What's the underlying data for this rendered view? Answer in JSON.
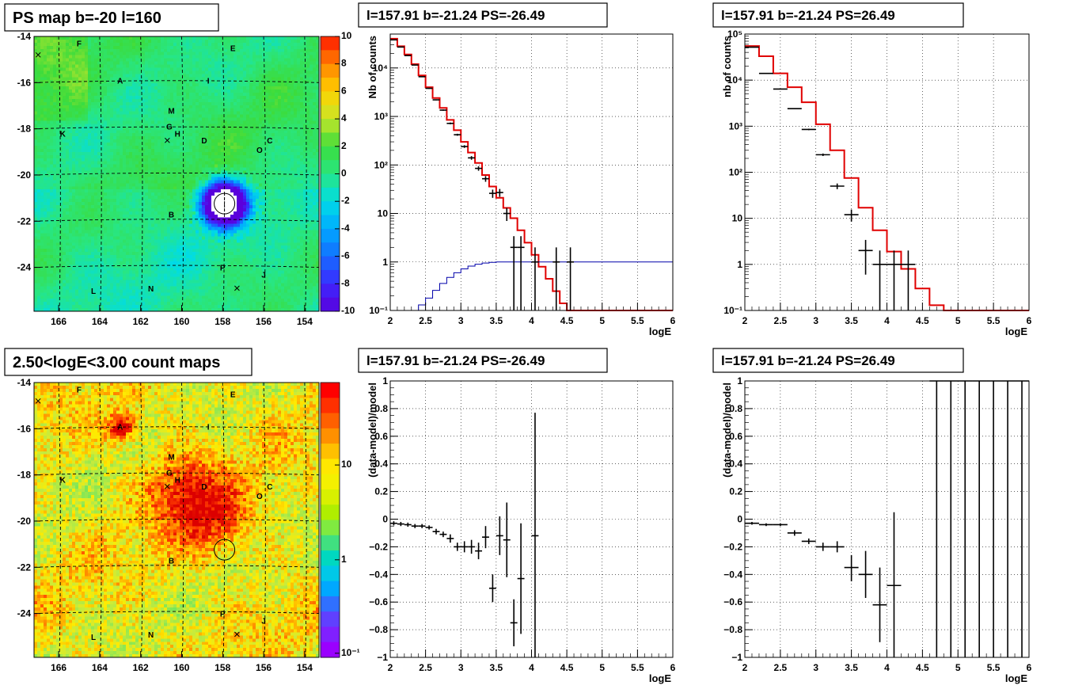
{
  "chart_data": [
    {
      "id": "ps-map",
      "type": "heatmap",
      "title": "PS map b=-20 l=160",
      "x_ticks": [
        166,
        164,
        162,
        160,
        158,
        156,
        154
      ],
      "y_ticks": [
        -14,
        -16,
        -18,
        -20,
        -22,
        -24
      ],
      "xlim": [
        167.2,
        153.3
      ],
      "ylim": [
        -25.9,
        -14.0
      ],
      "colorbar": {
        "min": -10,
        "max": 10,
        "ticks": [
          10,
          8,
          6,
          4,
          2,
          0,
          -2,
          -4,
          -6,
          -8,
          -10
        ]
      },
      "sources": [
        {
          "label": "F",
          "l": 165.0,
          "b": -14.3
        },
        {
          "label": "E",
          "l": 157.5,
          "b": -14.5
        },
        {
          "label": "A",
          "l": 163.0,
          "b": -15.9
        },
        {
          "label": "I",
          "l": 158.7,
          "b": -15.9
        },
        {
          "label": "M",
          "l": 160.5,
          "b": -17.2
        },
        {
          "label": "G",
          "l": 160.6,
          "b": -17.9
        },
        {
          "label": "H",
          "l": 160.2,
          "b": -18.2
        },
        {
          "label": "K",
          "l": 165.8,
          "b": -18.2
        },
        {
          "label": "D",
          "l": 158.9,
          "b": -18.5
        },
        {
          "label": "C",
          "l": 155.7,
          "b": -18.5
        },
        {
          "label": "O",
          "l": 156.2,
          "b": -18.9
        },
        {
          "label": "B",
          "l": 160.5,
          "b": -21.7
        },
        {
          "label": "P",
          "l": 158.0,
          "b": -24.0
        },
        {
          "label": "J",
          "l": 156.0,
          "b": -24.3
        },
        {
          "label": "N",
          "l": 161.5,
          "b": -24.9
        },
        {
          "label": "L",
          "l": 164.3,
          "b": -25.0
        }
      ],
      "crosses": [
        {
          "l": 167.0,
          "b": -14.8
        },
        {
          "l": 160.7,
          "b": -18.5
        },
        {
          "l": 157.3,
          "b": -24.9
        }
      ],
      "target": {
        "l": 157.91,
        "b": -21.24
      }
    },
    {
      "id": "spectrum-neg",
      "type": "line",
      "title": "l=157.91 b=-21.24 PS=-26.49",
      "xlabel": "logE",
      "ylabel": "Nb of counts",
      "yscale": "log",
      "xlim": [
        2,
        6
      ],
      "ylim": [
        0.1,
        50000
      ],
      "x_ticks": [
        2,
        2.5,
        3,
        3.5,
        4,
        4.5,
        5,
        5.5,
        6
      ],
      "y_ticks": [
        {
          "v": 0.1,
          "label": "10⁻¹"
        },
        {
          "v": 1,
          "label": "1"
        },
        {
          "v": 10,
          "label": "10"
        },
        {
          "v": 100,
          "label": "10²"
        },
        {
          "v": 1000,
          "label": "10³"
        },
        {
          "v": 10000,
          "label": "10⁴"
        }
      ],
      "bin_edges": [
        2.0,
        2.1,
        2.2,
        2.3,
        2.4,
        2.5,
        2.6,
        2.7,
        2.8,
        2.9,
        3.0,
        3.1,
        3.2,
        3.3,
        3.4,
        3.5,
        3.6,
        3.7,
        3.8,
        3.9,
        4.0,
        4.1,
        4.2,
        4.3,
        4.4,
        4.5,
        4.6,
        4.7,
        4.8,
        4.9,
        5.0,
        5.1,
        5.2,
        5.3,
        5.4,
        5.5,
        5.6,
        5.7,
        5.8,
        5.9,
        6.0
      ],
      "series": [
        {
          "type": "step",
          "color": "#e00000",
          "values": [
            40000,
            28000,
            19000,
            12000,
            7000,
            4000,
            2400,
            1500,
            850,
            520,
            300,
            180,
            110,
            62,
            36,
            21,
            13,
            8,
            4.5,
            2.5,
            1.4,
            0.8,
            0.45,
            0.25,
            0.14,
            0.1,
            0.1,
            0.1,
            0.1,
            0.1,
            0.1,
            0.1,
            0.1,
            0.1,
            0.1,
            0.1,
            0.1,
            0.1,
            0.1,
            0.1
          ]
        },
        {
          "type": "step",
          "color": "#0000aa",
          "values": [
            0.1,
            0.1,
            0.1,
            0.1,
            0.13,
            0.18,
            0.26,
            0.36,
            0.48,
            0.6,
            0.72,
            0.82,
            0.9,
            0.95,
            0.98,
            1.0,
            1.0,
            1.0,
            1.0,
            1.0,
            1.0,
            1.0,
            1.0,
            1.0,
            1.0,
            1.0,
            1.0,
            1.0,
            1.0,
            1.0,
            1.0,
            1.0,
            1.0,
            1.0,
            1.0,
            1.0,
            1.0,
            1.0,
            1.0,
            1.0
          ]
        },
        {
          "type": "errorbar",
          "color": "#000000",
          "points": [
            {
              "x": 2.05,
              "y": 38000,
              "ylo": 37800,
              "yhi": 38200
            },
            {
              "x": 2.15,
              "y": 27000,
              "ylo": 26800,
              "yhi": 27200
            },
            {
              "x": 2.25,
              "y": 18000,
              "ylo": 17800,
              "yhi": 18200
            },
            {
              "x": 2.35,
              "y": 11500,
              "ylo": 11300,
              "yhi": 11700
            },
            {
              "x": 2.45,
              "y": 6600,
              "ylo": 6500,
              "yhi": 6700
            },
            {
              "x": 2.55,
              "y": 3800,
              "ylo": 3700,
              "yhi": 3900
            },
            {
              "x": 2.65,
              "y": 2200,
              "ylo": 2150,
              "yhi": 2250
            },
            {
              "x": 2.75,
              "y": 1350,
              "ylo": 1310,
              "yhi": 1390
            },
            {
              "x": 2.85,
              "y": 720,
              "ylo": 690,
              "yhi": 750
            },
            {
              "x": 2.95,
              "y": 420,
              "ylo": 400,
              "yhi": 440
            },
            {
              "x": 3.05,
              "y": 240,
              "ylo": 225,
              "yhi": 255
            },
            {
              "x": 3.15,
              "y": 140,
              "ylo": 128,
              "yhi": 152
            },
            {
              "x": 3.25,
              "y": 85,
              "ylo": 76,
              "yhi": 94
            },
            {
              "x": 3.35,
              "y": 52,
              "ylo": 45,
              "yhi": 59
            },
            {
              "x": 3.45,
              "y": 26,
              "ylo": 21,
              "yhi": 31
            },
            {
              "x": 3.55,
              "y": 27,
              "ylo": 22,
              "yhi": 32
            },
            {
              "x": 3.65,
              "y": 10,
              "ylo": 7,
              "yhi": 13
            },
            {
              "x": 3.75,
              "y": 2,
              "ylo": 0.1,
              "yhi": 3.4
            },
            {
              "x": 3.85,
              "y": 2,
              "ylo": 0.1,
              "yhi": 3.4
            },
            {
              "x": 4.05,
              "y": 1,
              "ylo": 0.1,
              "yhi": 2
            },
            {
              "x": 4.35,
              "y": 1,
              "ylo": 0.1,
              "yhi": 2
            },
            {
              "x": 4.55,
              "y": 1,
              "ylo": 0.1,
              "yhi": 2
            }
          ]
        }
      ]
    },
    {
      "id": "spectrum-pos",
      "type": "line",
      "title": "l=157.91 b=-21.24 PS=26.49",
      "xlabel": "logE",
      "ylabel": "nb of counts",
      "yscale": "log",
      "xlim": [
        2,
        6
      ],
      "ylim": [
        0.1,
        100000
      ],
      "x_ticks": [
        2,
        2.5,
        3,
        3.5,
        4,
        4.5,
        5,
        5.5,
        6
      ],
      "y_ticks": [
        {
          "v": 0.1,
          "label": "10⁻¹"
        },
        {
          "v": 1,
          "label": "1"
        },
        {
          "v": 10,
          "label": "10"
        },
        {
          "v": 100,
          "label": "10²"
        },
        {
          "v": 1000,
          "label": "10³"
        },
        {
          "v": 10000,
          "label": "10⁴"
        },
        {
          "v": 100000,
          "label": "10⁵"
        }
      ],
      "bin_edges": [
        2.0,
        2.2,
        2.4,
        2.6,
        2.8,
        3.0,
        3.2,
        3.4,
        3.6,
        3.8,
        4.0,
        4.2,
        4.4,
        4.6,
        4.8,
        5.0,
        5.2,
        5.4,
        5.6,
        5.8,
        6.0
      ],
      "series": [
        {
          "type": "step",
          "color": "#e00000",
          "values": [
            55000,
            33000,
            14000,
            7000,
            3300,
            1100,
            300,
            75,
            17,
            5.5,
            1.9,
            0.8,
            0.3,
            0.13,
            0.1,
            0.1,
            0.1,
            0.1,
            0.1,
            0.1
          ]
        },
        {
          "type": "errorbar",
          "color": "#000000",
          "points": [
            {
              "x": 2.1,
              "y": 52000,
              "ylo": 51700,
              "yhi": 52300
            },
            {
              "x": 2.3,
              "y": 14000,
              "ylo": 13800,
              "yhi": 14200
            },
            {
              "x": 2.5,
              "y": 6400,
              "ylo": 6300,
              "yhi": 6500
            },
            {
              "x": 2.7,
              "y": 2400,
              "ylo": 2350,
              "yhi": 2450
            },
            {
              "x": 2.9,
              "y": 850,
              "ylo": 820,
              "yhi": 880
            },
            {
              "x": 3.1,
              "y": 240,
              "ylo": 225,
              "yhi": 255
            },
            {
              "x": 3.3,
              "y": 50,
              "ylo": 43,
              "yhi": 57
            },
            {
              "x": 3.5,
              "y": 12,
              "ylo": 8.5,
              "yhi": 15.5
            },
            {
              "x": 3.7,
              "y": 2,
              "ylo": 0.6,
              "yhi": 3.4
            },
            {
              "x": 3.9,
              "y": 1,
              "ylo": 0.1,
              "yhi": 2
            },
            {
              "x": 4.1,
              "y": 1,
              "ylo": 0.1,
              "yhi": 2
            },
            {
              "x": 4.3,
              "y": 1,
              "ylo": 0.1,
              "yhi": 2
            }
          ]
        }
      ]
    },
    {
      "id": "count-map",
      "type": "heatmap",
      "title": "2.50<logE<3.00 count maps",
      "x_ticks": [
        166,
        164,
        162,
        160,
        158,
        156,
        154
      ],
      "y_ticks": [
        -14,
        -16,
        -18,
        -20,
        -22,
        -24
      ],
      "xlim": [
        167.2,
        153.3
      ],
      "ylim": [
        -25.9,
        -14.0
      ],
      "colorbar": {
        "scale": "log",
        "ticks": [
          {
            "v": 10,
            "label": "10"
          },
          {
            "v": 1,
            "label": "1"
          },
          {
            "v": 0.1,
            "label": "10⁻¹"
          }
        ]
      },
      "hotspots": [
        {
          "l": 163.0,
          "b": -15.9,
          "strength": 1.0
        },
        {
          "l": 160.0,
          "b": -18.5,
          "strength": 0.7
        },
        {
          "l": 158.5,
          "b": -20.0,
          "strength": 0.6
        }
      ],
      "target": {
        "l": 157.91,
        "b": -21.24
      }
    },
    {
      "id": "residual-neg",
      "type": "scatter",
      "title": "l=157.91 b=-21.24 PS=-26.49",
      "xlabel": "logE",
      "ylabel": "(data-model)/model",
      "xlim": [
        2,
        6
      ],
      "ylim": [
        -1,
        1
      ],
      "x_ticks": [
        2,
        2.5,
        3,
        3.5,
        4,
        4.5,
        5,
        5.5,
        6
      ],
      "y_ticks": [
        {
          "v": 1,
          "label": "1"
        },
        {
          "v": 0.8,
          "label": "0.8"
        },
        {
          "v": 0.6,
          "label": "0.6"
        },
        {
          "v": 0.4,
          "label": "0.4"
        },
        {
          "v": 0.2,
          "label": "0.2"
        },
        {
          "v": 0,
          "label": "0"
        },
        {
          "v": -0.2,
          "label": "−0.2"
        },
        {
          "v": -0.4,
          "label": "−0.4"
        },
        {
          "v": -0.6,
          "label": "−0.6"
        },
        {
          "v": -0.8,
          "label": "−0.8"
        },
        {
          "v": -1,
          "label": "−1"
        }
      ],
      "points": [
        {
          "x": 2.05,
          "y": -0.03,
          "ylo": -0.045,
          "yhi": -0.015
        },
        {
          "x": 2.15,
          "y": -0.035,
          "ylo": -0.05,
          "yhi": -0.02
        },
        {
          "x": 2.25,
          "y": -0.04,
          "ylo": -0.055,
          "yhi": -0.025
        },
        {
          "x": 2.35,
          "y": -0.05,
          "ylo": -0.065,
          "yhi": -0.035
        },
        {
          "x": 2.45,
          "y": -0.05,
          "ylo": -0.065,
          "yhi": -0.035
        },
        {
          "x": 2.55,
          "y": -0.06,
          "ylo": -0.075,
          "yhi": -0.045
        },
        {
          "x": 2.65,
          "y": -0.09,
          "ylo": -0.11,
          "yhi": -0.07
        },
        {
          "x": 2.75,
          "y": -0.11,
          "ylo": -0.13,
          "yhi": -0.09
        },
        {
          "x": 2.85,
          "y": -0.14,
          "ylo": -0.17,
          "yhi": -0.11
        },
        {
          "x": 2.95,
          "y": -0.2,
          "ylo": -0.23,
          "yhi": -0.17
        },
        {
          "x": 3.05,
          "y": -0.2,
          "ylo": -0.24,
          "yhi": -0.16
        },
        {
          "x": 3.15,
          "y": -0.2,
          "ylo": -0.25,
          "yhi": -0.15
        },
        {
          "x": 3.25,
          "y": -0.23,
          "ylo": -0.29,
          "yhi": -0.17
        },
        {
          "x": 3.35,
          "y": -0.13,
          "ylo": -0.21,
          "yhi": -0.05
        },
        {
          "x": 3.45,
          "y": -0.5,
          "ylo": -0.6,
          "yhi": -0.4
        },
        {
          "x": 3.55,
          "y": -0.12,
          "ylo": -0.26,
          "yhi": 0.02
        },
        {
          "x": 3.65,
          "y": -0.15,
          "ylo": -0.42,
          "yhi": 0.12
        },
        {
          "x": 3.75,
          "y": -0.75,
          "ylo": -0.92,
          "yhi": -0.58
        },
        {
          "x": 3.85,
          "y": -0.43,
          "ylo": -0.83,
          "yhi": -0.03
        },
        {
          "x": 4.05,
          "y": -0.12,
          "ylo": -1.0,
          "yhi": 0.77
        }
      ]
    },
    {
      "id": "residual-pos",
      "type": "scatter",
      "title": "l=157.91 b=-21.24 PS=26.49",
      "xlabel": "logE",
      "ylabel": "(data-model)/model",
      "xlim": [
        2,
        6
      ],
      "ylim": [
        -1,
        1
      ],
      "x_ticks": [
        2,
        2.5,
        3,
        3.5,
        4,
        4.5,
        5,
        5.5,
        6
      ],
      "y_ticks": [
        {
          "v": 1,
          "label": "1"
        },
        {
          "v": 0.8,
          "label": "0.8"
        },
        {
          "v": 0.6,
          "label": "0.6"
        },
        {
          "v": 0.4,
          "label": "0.4"
        },
        {
          "v": 0.2,
          "label": "0.2"
        },
        {
          "v": 0,
          "label": "0"
        },
        {
          "v": -0.2,
          "label": "−0.2"
        },
        {
          "v": -0.4,
          "label": "−0.4"
        },
        {
          "v": -0.6,
          "label": "−0.6"
        },
        {
          "v": -0.8,
          "label": "−0.8"
        },
        {
          "v": -1,
          "label": "−1"
        }
      ],
      "points": [
        {
          "x": 2.1,
          "y": -0.03,
          "ylo": -0.04,
          "yhi": -0.02
        },
        {
          "x": 2.3,
          "y": -0.04,
          "ylo": -0.05,
          "yhi": -0.03
        },
        {
          "x": 2.5,
          "y": -0.04,
          "ylo": -0.05,
          "yhi": -0.03
        },
        {
          "x": 2.7,
          "y": -0.1,
          "ylo": -0.12,
          "yhi": -0.08
        },
        {
          "x": 2.9,
          "y": -0.16,
          "ylo": -0.18,
          "yhi": -0.14
        },
        {
          "x": 3.1,
          "y": -0.2,
          "ylo": -0.23,
          "yhi": -0.17
        },
        {
          "x": 3.3,
          "y": -0.2,
          "ylo": -0.24,
          "yhi": -0.16
        },
        {
          "x": 3.5,
          "y": -0.35,
          "ylo": -0.45,
          "yhi": -0.26
        },
        {
          "x": 3.7,
          "y": -0.4,
          "ylo": -0.57,
          "yhi": -0.23
        },
        {
          "x": 3.9,
          "y": -0.62,
          "ylo": -0.89,
          "yhi": -0.35
        },
        {
          "x": 4.1,
          "y": -0.48,
          "ylo": -1.0,
          "yhi": 0.05
        },
        {
          "x": 4.7,
          "y": 1.0,
          "ylo": -1.0,
          "yhi": 1.0
        },
        {
          "x": 4.9,
          "y": 1.0,
          "ylo": -1.0,
          "yhi": 1.0
        },
        {
          "x": 5.1,
          "y": 1.0,
          "ylo": -1.0,
          "yhi": 1.0
        },
        {
          "x": 5.3,
          "y": 1.0,
          "ylo": -1.0,
          "yhi": 1.0
        },
        {
          "x": 5.5,
          "y": 1.0,
          "ylo": -1.0,
          "yhi": 1.0
        },
        {
          "x": 5.7,
          "y": 1.0,
          "ylo": -1.0,
          "yhi": 1.0
        },
        {
          "x": 5.9,
          "y": 1.0,
          "ylo": -1.0,
          "yhi": 1.0
        }
      ]
    }
  ]
}
